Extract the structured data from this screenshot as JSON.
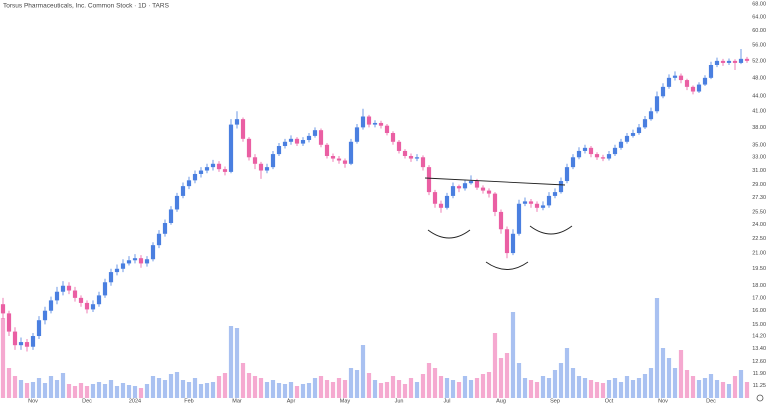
{
  "chart_data": {
    "type": "candlestick",
    "title": "Torsus Pharmaceuticals, Inc. Common Stock · 1D · TARS",
    "log_scale": true,
    "grid": false,
    "up_color": "#4a7fe0",
    "down_color": "#ea5fa3",
    "up_volume_color": "#a9c1f1",
    "down_volume_color": "#f5a9d0",
    "ylim": [
      10.6,
      69.3
    ],
    "yticks": [
      {
        "value": 68,
        "label": "68.00"
      },
      {
        "value": 64,
        "label": "64.00"
      },
      {
        "value": 60,
        "label": "60.00"
      },
      {
        "value": 56,
        "label": "56.00"
      },
      {
        "value": 52,
        "label": "52.00"
      },
      {
        "value": 48,
        "label": "48.00"
      },
      {
        "value": 44,
        "label": "44.00"
      },
      {
        "value": 41,
        "label": "41.00"
      },
      {
        "value": 38,
        "label": "38.00"
      },
      {
        "value": 35,
        "label": "35.00"
      },
      {
        "value": 33,
        "label": "33.00"
      },
      {
        "value": 31,
        "label": "31.00"
      },
      {
        "value": 29,
        "label": "29.00"
      },
      {
        "value": 27.3,
        "label": "27.30"
      },
      {
        "value": 25.5,
        "label": "25.50"
      },
      {
        "value": 24,
        "label": "24.00"
      },
      {
        "value": 22.5,
        "label": "22.50"
      },
      {
        "value": 21,
        "label": "21.00"
      },
      {
        "value": 19.5,
        "label": "19.50"
      },
      {
        "value": 18,
        "label": "18.00"
      },
      {
        "value": 17,
        "label": "17.00"
      },
      {
        "value": 16,
        "label": "16.00"
      },
      {
        "value": 15,
        "label": "15.00"
      },
      {
        "value": 14.2,
        "label": "14.20"
      },
      {
        "value": 13.4,
        "label": "13.40"
      },
      {
        "value": 12.6,
        "label": "12.60"
      },
      {
        "value": 11.9,
        "label": "11.90"
      },
      {
        "value": 11.25,
        "label": "11.25"
      }
    ],
    "categories": [
      null,
      null,
      null,
      null,
      null,
      "Nov",
      null,
      null,
      null,
      null,
      null,
      null,
      null,
      null,
      "Dec",
      null,
      null,
      null,
      null,
      null,
      null,
      null,
      "2024",
      null,
      null,
      null,
      null,
      null,
      null,
      null,
      null,
      "Feb",
      null,
      null,
      null,
      null,
      null,
      null,
      null,
      "Mar",
      null,
      null,
      null,
      null,
      null,
      null,
      null,
      null,
      "Apr",
      null,
      null,
      null,
      null,
      null,
      null,
      null,
      null,
      "May",
      null,
      null,
      null,
      null,
      null,
      null,
      null,
      null,
      "Jun",
      null,
      null,
      null,
      null,
      null,
      null,
      null,
      "Jul",
      null,
      null,
      null,
      null,
      null,
      null,
      null,
      null,
      "Aug",
      null,
      null,
      null,
      null,
      null,
      null,
      null,
      null,
      "Sep",
      null,
      null,
      null,
      null,
      null,
      null,
      null,
      null,
      "Oct",
      null,
      null,
      null,
      null,
      null,
      null,
      null,
      null,
      "Nov",
      null,
      null,
      null,
      null,
      null,
      null,
      null,
      "Dec",
      null,
      null,
      null,
      null,
      null,
      null
    ],
    "open": [
      16.5,
      15.8,
      14.5,
      13.6,
      13.8,
      13.5,
      14.2,
      15.3,
      16.0,
      16.8,
      17.5,
      18.0,
      17.6,
      17.0,
      16.6,
      16.1,
      16.5,
      17.2,
      18.3,
      19.2,
      19.5,
      20.0,
      20.3,
      20.5,
      20.0,
      20.4,
      21.8,
      23.0,
      24.2,
      25.8,
      27.5,
      28.8,
      29.6,
      30.5,
      31.0,
      31.5,
      32.0,
      31.2,
      30.8,
      38.5,
      39.5,
      36.0,
      33.0,
      32.0,
      31.0,
      31.5,
      33.5,
      34.8,
      35.5,
      36.0,
      35.2,
      35.8,
      36.5,
      37.5,
      35.0,
      33.2,
      32.8,
      32.5,
      32.0,
      35.5,
      38.0,
      40.0,
      38.5,
      38.8,
      38.3,
      37.0,
      35.5,
      34.0,
      33.2,
      32.8,
      33.0,
      31.5,
      28.0,
      26.5,
      26.0,
      27.5,
      28.8,
      28.5,
      29.2,
      29.5,
      28.6,
      28.2,
      27.8,
      25.5,
      23.5,
      21.0,
      23.0,
      26.5,
      26.8,
      26.5,
      26.0,
      26.3,
      27.5,
      28.0,
      29.5,
      31.5,
      33.0,
      34.0,
      34.5,
      33.5,
      33.0,
      32.8,
      33.5,
      34.5,
      35.5,
      36.5,
      37.0,
      38.0,
      39.5,
      41.0,
      44.0,
      46.0,
      48.0,
      48.5,
      47.5,
      46.0,
      45.0,
      46.5,
      48.0,
      51.0,
      52.0,
      51.5,
      52.0,
      51.5,
      52.5
    ],
    "high": [
      17.0,
      16.0,
      14.8,
      14.1,
      14.0,
      14.4,
      15.6,
      16.3,
      17.1,
      17.9,
      18.4,
      18.3,
      17.9,
      17.2,
      16.8,
      16.8,
      17.5,
      18.6,
      19.5,
      19.9,
      20.4,
      20.7,
      20.9,
      20.8,
      20.7,
      22.1,
      23.4,
      24.6,
      26.2,
      27.9,
      29.3,
      30.1,
      31.0,
      31.5,
      32.0,
      32.6,
      32.4,
      31.6,
      39.5,
      41.0,
      39.8,
      36.3,
      33.5,
      32.3,
      32.0,
      34.0,
      35.3,
      36.0,
      36.6,
      36.3,
      36.3,
      37.0,
      38.0,
      37.8,
      35.3,
      33.6,
      33.2,
      32.8,
      36.0,
      38.6,
      41.5,
      40.3,
      39.3,
      39.2,
      38.6,
      37.3,
      35.8,
      34.3,
      33.6,
      33.5,
      33.3,
      31.8,
      28.3,
      26.9,
      27.9,
      29.3,
      29.0,
      29.7,
      30.3,
      29.8,
      28.9,
      28.5,
      28.0,
      25.8,
      23.8,
      23.5,
      27.0,
      27.3,
      27.1,
      26.8,
      26.8,
      28.0,
      28.5,
      30.0,
      32.0,
      33.5,
      34.6,
      35.0,
      34.8,
      33.8,
      33.4,
      34.0,
      35.0,
      36.0,
      37.0,
      37.6,
      38.6,
      40.1,
      41.7,
      45.0,
      46.8,
      48.8,
      49.5,
      49.0,
      47.8,
      46.3,
      47.0,
      48.6,
      51.8,
      52.8,
      52.5,
      52.6,
      52.4,
      55.0,
      53.0
    ],
    "low": [
      15.4,
      14.2,
      13.3,
      13.3,
      13.2,
      13.3,
      14.0,
      15.0,
      15.8,
      16.5,
      17.2,
      17.3,
      16.7,
      16.3,
      15.8,
      15.9,
      16.3,
      17.0,
      18.0,
      18.9,
      19.2,
      19.8,
      20.0,
      19.6,
      19.7,
      20.2,
      21.5,
      22.7,
      24.0,
      25.5,
      27.2,
      28.4,
      29.2,
      30.0,
      30.6,
      31.0,
      30.8,
      30.3,
      30.6,
      37.8,
      35.5,
      32.5,
      31.2,
      29.8,
      30.6,
      31.2,
      33.2,
      34.4,
      35.0,
      34.8,
      34.8,
      35.4,
      36.2,
      34.6,
      32.8,
      32.3,
      32.0,
      31.4,
      31.8,
      35.2,
      37.6,
      38.0,
      38.0,
      37.8,
      36.6,
      35.0,
      33.6,
      32.8,
      32.3,
      32.4,
      31.0,
      27.6,
      26.0,
      25.4,
      25.8,
      27.2,
      28.0,
      28.2,
      29.0,
      28.3,
      27.8,
      27.3,
      25.0,
      23.0,
      20.5,
      20.8,
      22.8,
      26.2,
      26.0,
      25.5,
      25.7,
      26.0,
      27.2,
      27.8,
      29.2,
      31.2,
      32.7,
      33.6,
      33.0,
      32.6,
      32.4,
      32.5,
      33.2,
      34.2,
      35.2,
      36.2,
      36.7,
      37.7,
      39.2,
      40.6,
      43.6,
      45.6,
      47.4,
      46.8,
      45.3,
      44.4,
      44.7,
      46.2,
      47.7,
      50.5,
      50.8,
      51.0,
      49.8,
      51.2,
      51.5
    ],
    "close": [
      15.8,
      14.5,
      13.6,
      13.8,
      13.5,
      14.2,
      15.3,
      16.0,
      16.8,
      17.5,
      18.0,
      17.6,
      17.0,
      16.6,
      16.1,
      16.5,
      17.2,
      18.3,
      19.2,
      19.5,
      20.0,
      20.3,
      20.5,
      20.0,
      20.4,
      21.8,
      23.0,
      24.2,
      25.8,
      27.5,
      28.8,
      29.6,
      30.5,
      31.0,
      31.5,
      32.0,
      31.2,
      30.8,
      38.5,
      39.5,
      36.0,
      33.0,
      32.0,
      31.0,
      31.5,
      33.5,
      34.8,
      35.5,
      36.0,
      35.2,
      35.8,
      36.5,
      37.5,
      35.0,
      33.2,
      32.8,
      32.5,
      32.0,
      35.5,
      38.0,
      40.0,
      38.5,
      38.8,
      38.3,
      37.0,
      35.5,
      34.0,
      33.2,
      32.8,
      33.0,
      31.5,
      28.0,
      26.5,
      26.0,
      27.5,
      28.8,
      28.5,
      29.2,
      29.5,
      28.6,
      28.2,
      27.8,
      25.5,
      23.5,
      21.0,
      23.0,
      26.5,
      26.8,
      26.5,
      26.0,
      26.3,
      27.5,
      28.0,
      29.5,
      31.5,
      33.0,
      34.0,
      34.5,
      33.5,
      33.0,
      32.8,
      33.5,
      34.5,
      35.5,
      36.5,
      37.0,
      38.0,
      39.5,
      41.0,
      44.0,
      46.0,
      48.0,
      48.5,
      47.5,
      46.0,
      45.0,
      46.5,
      48.0,
      51.0,
      52.0,
      51.5,
      52.0,
      51.5,
      52.5,
      52.0
    ],
    "volume": [
      80,
      30,
      22,
      18,
      15,
      16,
      20,
      15,
      22,
      18,
      25,
      14,
      12,
      15,
      12,
      14,
      16,
      14,
      18,
      12,
      15,
      13,
      12,
      10,
      14,
      22,
      20,
      18,
      24,
      26,
      18,
      16,
      20,
      14,
      15,
      16,
      22,
      25,
      72,
      70,
      35,
      25,
      22,
      20,
      16,
      18,
      15,
      14,
      16,
      12,
      14,
      15,
      20,
      22,
      18,
      16,
      20,
      18,
      30,
      28,
      53,
      25,
      18,
      15,
      16,
      22,
      18,
      14,
      20,
      16,
      24,
      35,
      30,
      22,
      20,
      18,
      16,
      22,
      18,
      20,
      24,
      26,
      65,
      40,
      45,
      86,
      35,
      20,
      18,
      16,
      22,
      20,
      28,
      35,
      50,
      30,
      22,
      20,
      18,
      16,
      15,
      18,
      20,
      16,
      22,
      18,
      20,
      24,
      30,
      100,
      50,
      40,
      30,
      48,
      28,
      22,
      18,
      20,
      24,
      18,
      16,
      14,
      22,
      28,
      16
    ]
  }
}
